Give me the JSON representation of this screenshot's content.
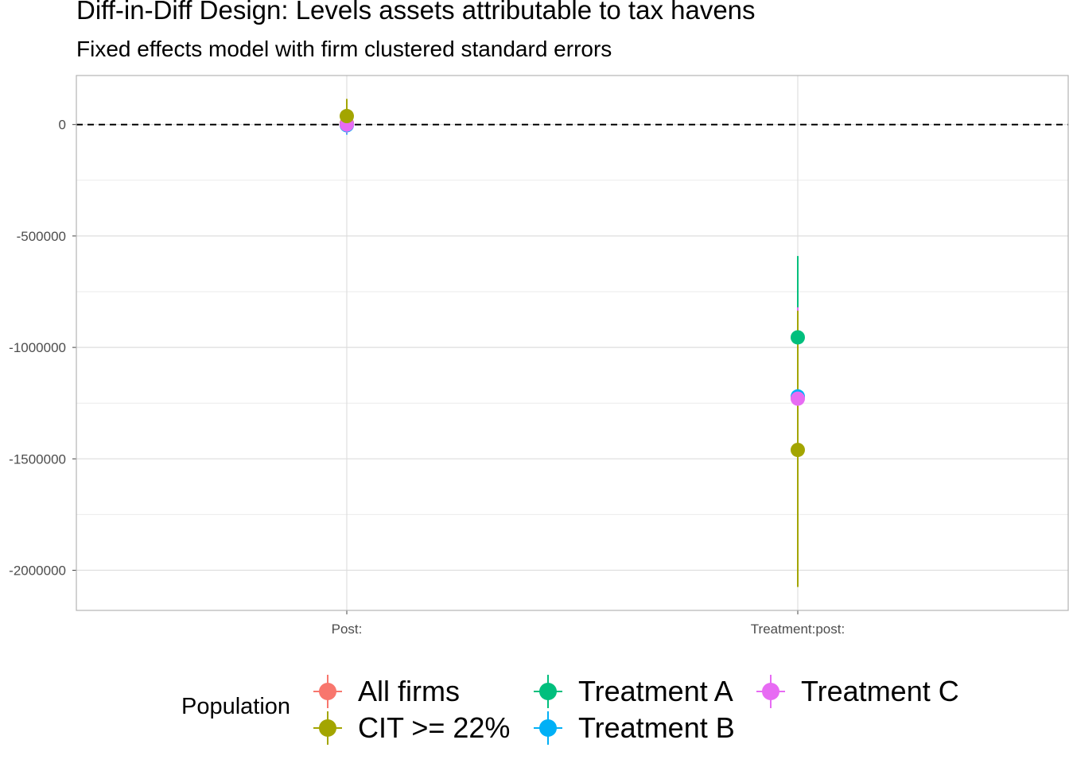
{
  "chart_data": {
    "type": "pointrange",
    "title": "Diff-in-Diff Design: Levels assets attributable to tax havens",
    "subtitle": "Fixed effects model with firm clustered standard errors",
    "xlabel": "",
    "ylabel": "",
    "categories": [
      "Post:",
      "Treatment:post:"
    ],
    "y_ticks": [
      0,
      -500000,
      -1000000,
      -1500000,
      -2000000
    ],
    "y_tick_labels": [
      "0",
      "-500000",
      "-1000000",
      "-1500000",
      "-2000000"
    ],
    "ylim": [
      -2180000,
      220000
    ],
    "reference_line": {
      "y": 0,
      "style": "dashed"
    },
    "grid": true,
    "legend": {
      "title": "Population",
      "position": "bottom"
    },
    "series": [
      {
        "name": "All firms",
        "color": "#F8766D",
        "points": [
          {
            "x": "Post:",
            "estimate": 5000,
            "low": -40000,
            "high": 50000
          },
          {
            "x": "Treatment:post:",
            "estimate": -1225000,
            "low": -1600000,
            "high": -850000
          }
        ]
      },
      {
        "name": "CIT >= 22%",
        "color": "#A3A500",
        "points": [
          {
            "x": "Post:",
            "estimate": 38000,
            "low": -35000,
            "high": 115000
          },
          {
            "x": "Treatment:post:",
            "estimate": -1460000,
            "low": -2075000,
            "high": -835000
          }
        ]
      },
      {
        "name": "Treatment A",
        "color": "#00BF7D",
        "points": [
          {
            "x": "Post:",
            "estimate": 5000,
            "low": -35000,
            "high": 45000
          },
          {
            "x": "Treatment:post:",
            "estimate": -955000,
            "low": -1325000,
            "high": -590000
          }
        ]
      },
      {
        "name": "Treatment B",
        "color": "#00B0F6",
        "points": [
          {
            "x": "Post:",
            "estimate": -3000,
            "low": -45000,
            "high": 40000
          },
          {
            "x": "Treatment:post:",
            "estimate": -1220000,
            "low": -1600000,
            "high": -845000
          }
        ]
      },
      {
        "name": "Treatment C",
        "color": "#E76BF3",
        "points": [
          {
            "x": "Post:",
            "estimate": 0,
            "low": -40000,
            "high": 40000
          },
          {
            "x": "Treatment:post:",
            "estimate": -1230000,
            "low": -1610000,
            "high": -820000
          }
        ]
      }
    ]
  }
}
